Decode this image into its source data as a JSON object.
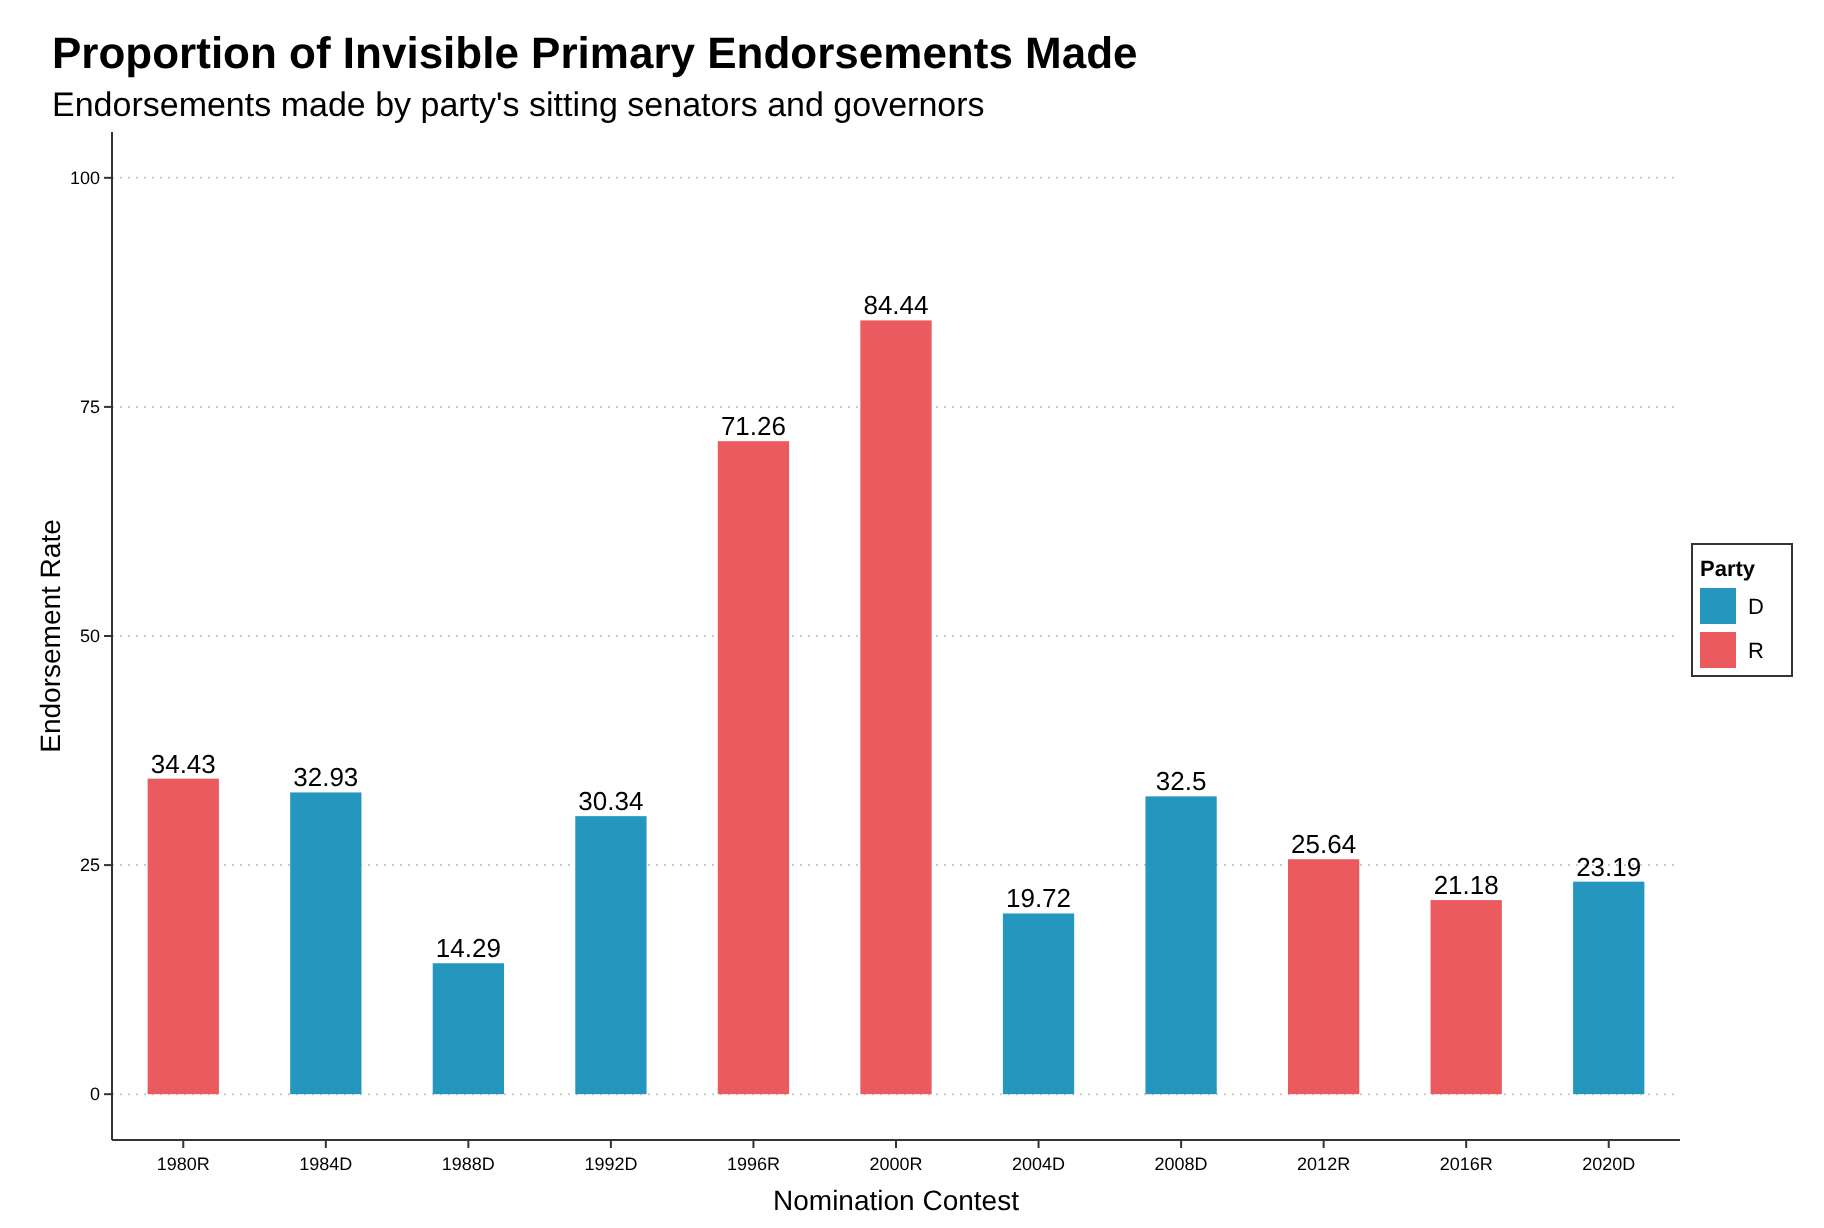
{
  "chart_data": {
    "type": "bar",
    "title": "Proportion of Invisible Primary Endorsements Made",
    "subtitle": "Endorsements made by party's sitting senators and governors",
    "xlabel": "Nomination Contest",
    "ylabel": "Endorsement Rate",
    "legend_title": "Party",
    "categories": [
      "1980R",
      "1984D",
      "1988D",
      "1992D",
      "1996R",
      "2000R",
      "2004D",
      "2008D",
      "2012R",
      "2016R",
      "2020D"
    ],
    "series": [
      {
        "name": "D",
        "color": "#2596be",
        "values": [
          null,
          32.93,
          14.29,
          30.34,
          null,
          null,
          19.72,
          32.5,
          null,
          null,
          23.19
        ]
      },
      {
        "name": "R",
        "color": "#eb5a5f",
        "values": [
          34.43,
          null,
          null,
          null,
          71.26,
          84.44,
          null,
          null,
          25.64,
          21.18,
          null
        ]
      }
    ],
    "ylim": [
      -5,
      105
    ],
    "yticks": [
      0,
      25,
      50,
      75,
      100
    ],
    "grid": "y",
    "legend": "right",
    "data_labels": true
  }
}
